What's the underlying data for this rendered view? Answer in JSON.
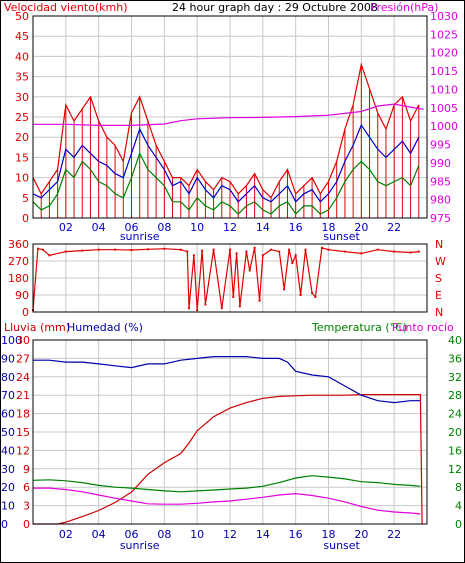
{
  "colors": {
    "wind": "#e00000",
    "wind_avg": "#0000cc",
    "wind_gust_low": "#008000",
    "pressure": "#e000e0",
    "rain": "#cc0000",
    "humidity": "#0000aa",
    "temperature": "#008000",
    "dewpoint": "#e000e0",
    "grid": "#c8c8c8",
    "frame": "#000000"
  },
  "chart_data": [
    {
      "id": "wind-pressure",
      "type": "line",
      "title": "24 hour graph day : 29 Octubre 2008",
      "left_label": "Velocidad viento(kmh)",
      "right_label": "Presión(hPa)",
      "x_ticks": [
        "02",
        "04",
        "06",
        "08",
        "10",
        "12",
        "14",
        "16",
        "18",
        "20",
        "22"
      ],
      "sunrise_label": "sunrise",
      "sunset_label": "sunset",
      "sunrise_hour": 6.5,
      "sunset_hour": 18.8,
      "ylim_left": [
        0,
        50
      ],
      "y_ticks_left": [
        "0",
        "5",
        "10",
        "15",
        "20",
        "25",
        "30",
        "35",
        "40",
        "45",
        "50"
      ],
      "ylim_right": [
        975,
        1030
      ],
      "y_ticks_right": [
        "975",
        "980",
        "985",
        "990",
        "995",
        "1000",
        "1005",
        "1010",
        "1015",
        "1020",
        "1025",
        "1030"
      ],
      "series": [
        {
          "name": "gust",
          "x": [
            0,
            0.5,
            1,
            1.5,
            2,
            2.5,
            3,
            3.5,
            4,
            4.5,
            5,
            5.5,
            6,
            6.5,
            7,
            7.5,
            8,
            8.5,
            9,
            9.5,
            10,
            10.5,
            11,
            11.5,
            12,
            12.5,
            13,
            13.5,
            14,
            14.5,
            15,
            15.5,
            16,
            16.5,
            17,
            17.5,
            18,
            18.5,
            19,
            19.5,
            20,
            20.5,
            21,
            21.5,
            22,
            22.5,
            23,
            23.5
          ],
          "y": [
            10,
            6,
            9,
            12,
            28,
            24,
            27,
            30,
            24,
            20,
            18,
            14,
            26,
            30,
            24,
            18,
            14,
            10,
            10,
            8,
            12,
            9,
            7,
            10,
            9,
            6,
            8,
            11,
            7,
            5,
            9,
            12,
            6,
            8,
            10,
            6,
            9,
            14,
            22,
            28,
            38,
            32,
            26,
            22,
            28,
            30,
            24,
            28
          ]
        },
        {
          "name": "average",
          "x": [
            0,
            0.5,
            1,
            1.5,
            2,
            2.5,
            3,
            3.5,
            4,
            4.5,
            5,
            5.5,
            6,
            6.5,
            7,
            7.5,
            8,
            8.5,
            9,
            9.5,
            10,
            10.5,
            11,
            11.5,
            12,
            12.5,
            13,
            13.5,
            14,
            14.5,
            15,
            15.5,
            16,
            16.5,
            17,
            17.5,
            18,
            18.5,
            19,
            19.5,
            20,
            20.5,
            21,
            21.5,
            22,
            22.5,
            23,
            23.5
          ],
          "y": [
            6,
            5,
            7,
            9,
            17,
            15,
            18,
            16,
            14,
            13,
            11,
            10,
            16,
            22,
            18,
            15,
            12,
            8,
            9,
            6,
            10,
            7,
            5,
            8,
            7,
            4,
            6,
            8,
            5,
            4,
            6,
            8,
            4,
            6,
            7,
            4,
            6,
            9,
            14,
            18,
            23,
            20,
            17,
            15,
            17,
            19,
            16,
            20
          ]
        },
        {
          "name": "low",
          "x": [
            0,
            0.5,
            1,
            1.5,
            2,
            2.5,
            3,
            3.5,
            4,
            4.5,
            5,
            5.5,
            6,
            6.5,
            7,
            7.5,
            8,
            8.5,
            9,
            9.5,
            10,
            10.5,
            11,
            11.5,
            12,
            12.5,
            13,
            13.5,
            14,
            14.5,
            15,
            15.5,
            16,
            16.5,
            17,
            17.5,
            18,
            18.5,
            19,
            19.5,
            20,
            20.5,
            21,
            21.5,
            22,
            22.5,
            23,
            23.5
          ],
          "y": [
            4,
            2,
            3,
            6,
            12,
            10,
            14,
            12,
            9,
            8,
            6,
            5,
            10,
            16,
            12,
            10,
            8,
            4,
            4,
            2,
            5,
            3,
            2,
            4,
            3,
            1,
            3,
            4,
            2,
            1,
            3,
            4,
            1,
            3,
            3,
            1,
            2,
            5,
            9,
            12,
            14,
            12,
            9,
            8,
            9,
            10,
            8,
            13
          ]
        },
        {
          "name": "pressure",
          "x": [
            0,
            2,
            4,
            6,
            8,
            9,
            10,
            12,
            14,
            16,
            18,
            20,
            21,
            22,
            23,
            23.8
          ],
          "y": [
            1000.5,
            1000.5,
            1000.2,
            1000.2,
            1000.6,
            1001.5,
            1002.0,
            1002.3,
            1002.4,
            1002.6,
            1003.0,
            1004.0,
            1005.5,
            1006.0,
            1005.2,
            1004.6
          ]
        }
      ]
    },
    {
      "id": "wind-direction",
      "type": "line",
      "x_ticks": [],
      "ylim": [
        0,
        360
      ],
      "y_ticks_left": [
        "0",
        "90",
        "180",
        "270",
        "360"
      ],
      "y_ticks_right": [
        "N",
        "E",
        "S",
        "W",
        "N"
      ],
      "series": [
        {
          "name": "direction",
          "x": [
            0,
            0.3,
            0.6,
            1,
            2,
            3,
            4,
            5,
            6,
            7,
            8,
            9,
            9.4,
            9.5,
            9.8,
            10,
            10.3,
            10.5,
            11,
            11.5,
            12,
            12.2,
            12.4,
            12.6,
            13,
            13.2,
            13.5,
            13.8,
            14,
            14.5,
            15,
            15.3,
            15.6,
            15.8,
            16,
            16.3,
            16.6,
            17,
            17.2,
            17.6,
            18,
            19,
            20,
            21,
            22,
            23,
            23.5
          ],
          "y": [
            10,
            335,
            330,
            300,
            320,
            325,
            330,
            330,
            328,
            332,
            335,
            330,
            320,
            20,
            300,
            10,
            325,
            40,
            330,
            20,
            330,
            80,
            310,
            30,
            320,
            220,
            340,
            60,
            300,
            330,
            320,
            120,
            330,
            260,
            300,
            90,
            330,
            100,
            80,
            340,
            330,
            320,
            310,
            330,
            320,
            315,
            320
          ]
        }
      ]
    },
    {
      "id": "rain-humidity-temp",
      "type": "line",
      "left_label_1": "Lluvia (mm)",
      "left_label_2": "Humedad (%)",
      "right_label_1": "Temperatura (°C)",
      "right_label_2": "Punto rocío",
      "x_ticks": [
        "02",
        "04",
        "06",
        "08",
        "10",
        "12",
        "14",
        "16",
        "18",
        "20",
        "22"
      ],
      "sunrise_label": "sunrise",
      "sunset_label": "sunset",
      "ylim_rain": [
        0,
        30
      ],
      "y_ticks_rain": [
        "0",
        "3",
        "6",
        "9",
        "12",
        "15",
        "18",
        "21",
        "24",
        "27",
        "30"
      ],
      "ylim_humidity": [
        0,
        100
      ],
      "y_ticks_humidity": [
        "0",
        "10",
        "20",
        "30",
        "40",
        "50",
        "60",
        "70",
        "80",
        "90",
        "100"
      ],
      "ylim_temp": [
        0,
        40
      ],
      "y_ticks_temp": [
        "0",
        "4",
        "8",
        "12",
        "16",
        "20",
        "24",
        "28",
        "32",
        "36",
        "40"
      ],
      "series": [
        {
          "name": "rain",
          "x": [
            0,
            1.5,
            2,
            3,
            4,
            5,
            6,
            7,
            8,
            9,
            9.5,
            10,
            11,
            12,
            13,
            14,
            15,
            16,
            17,
            18,
            19,
            20,
            21,
            22,
            23,
            23.6,
            23.7
          ],
          "y": [
            0,
            0,
            0.3,
            1.2,
            2.2,
            3.5,
            5.2,
            8.1,
            10.0,
            11.5,
            13.2,
            15.2,
            17.5,
            18.9,
            19.8,
            20.5,
            20.8,
            20.9,
            21.0,
            21.0,
            21.0,
            21.1,
            21.1,
            21.1,
            21.1,
            21.1,
            0
          ]
        },
        {
          "name": "humidity",
          "x": [
            0,
            1,
            2,
            3,
            4,
            5,
            6,
            7,
            8,
            9,
            10,
            11,
            12,
            13,
            14,
            15,
            15.5,
            16,
            17,
            18,
            19,
            20,
            21,
            22,
            23,
            23.6
          ],
          "y": [
            89,
            89,
            88,
            88,
            87,
            86,
            85,
            87,
            87,
            89,
            90,
            91,
            91,
            91,
            90,
            90,
            88,
            83,
            81,
            80,
            75,
            70,
            67,
            66,
            67,
            67
          ]
        },
        {
          "name": "temperature",
          "x": [
            0,
            1,
            2,
            3,
            4,
            5,
            6,
            7,
            8,
            9,
            10,
            11,
            12,
            13,
            14,
            15,
            16,
            17,
            18,
            19,
            20,
            21,
            22,
            23,
            23.6
          ],
          "y": [
            9.5,
            9.6,
            9.4,
            9.0,
            8.4,
            8.0,
            7.8,
            7.5,
            7.2,
            7.0,
            7.2,
            7.4,
            7.6,
            7.8,
            8.2,
            9.0,
            10.0,
            10.5,
            10.2,
            9.8,
            9.2,
            9.0,
            8.6,
            8.4,
            8.2
          ]
        },
        {
          "name": "dewpoint",
          "x": [
            0,
            1,
            2,
            3,
            4,
            5,
            6,
            7,
            8,
            9,
            10,
            11,
            12,
            13,
            14,
            15,
            16,
            17,
            18,
            19,
            20,
            21,
            22,
            23,
            23.6
          ],
          "y": [
            7.8,
            7.8,
            7.5,
            7.0,
            6.3,
            5.6,
            5.0,
            4.4,
            4.3,
            4.3,
            4.5,
            4.8,
            5.0,
            5.4,
            5.8,
            6.3,
            6.6,
            6.2,
            5.6,
            4.8,
            3.8,
            3.0,
            2.6,
            2.4,
            2.2
          ]
        }
      ]
    }
  ]
}
